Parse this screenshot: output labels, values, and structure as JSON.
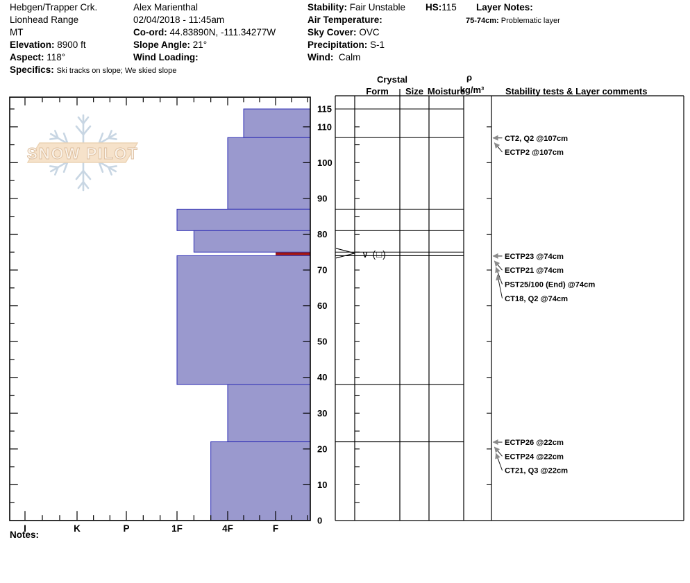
{
  "header": {
    "location": {
      "name": "Hebgen/Trapper Crk.",
      "range": "Lionhead Range",
      "state": "MT",
      "elevation_label": "Elevation:",
      "elevation_value": "8900 ft",
      "aspect_label": "Aspect:",
      "aspect_value": "118°",
      "specifics_label": "Specifics:",
      "specifics_value": "Ski tracks on slope; We skied slope"
    },
    "observation": {
      "observer": "Alex Marienthal",
      "datetime": "02/04/2018 - 11:45am",
      "coord_label": "Co-ord:",
      "coord_value": "44.83890N, -111.34277W",
      "slope_angle_label": "Slope Angle:",
      "slope_angle_value": "21°",
      "wind_loading_label": "Wind Loading:",
      "wind_loading_value": ""
    },
    "conditions": {
      "stability_label": "Stability:",
      "stability_value": "Fair Unstable",
      "air_temp_label": "Air Temperature:",
      "air_temp_value": "",
      "sky_cover_label": "Sky Cover:",
      "sky_cover_value": "OVC",
      "precip_label": "Precipitation:",
      "precip_value": "S-1",
      "wind_label": "Wind:",
      "wind_value": "Calm"
    },
    "hs_label": "HS:",
    "hs_value": "115",
    "layer_notes": {
      "label": "Layer Notes:",
      "note_depth": "75-74cm:",
      "note_text": "Problematic layer"
    }
  },
  "logo": {
    "text": "SNOW PILOT"
  },
  "table_headers": {
    "crystal": "Crystal",
    "form": "Form",
    "size": "Size",
    "moisture": "Moisture",
    "rho": "ρ",
    "rho_unit": "kg/m³",
    "stability": "Stability tests & Layer comments"
  },
  "notes_label": "Notes:",
  "chart_data": {
    "type": "bar",
    "subtype": "snow-hardness-profile",
    "title": "Snow hardness profile (depth cm vs hand hardness)",
    "depth_axis": {
      "unit": "cm",
      "min": 0,
      "max": 115,
      "tick_labels": [
        115,
        110,
        100,
        90,
        80,
        70,
        60,
        50,
        40,
        30,
        20,
        10,
        0
      ]
    },
    "hardness_axis": {
      "tick_labels": [
        "I",
        "K",
        "P",
        "1F",
        "4F",
        "F"
      ]
    },
    "total_depth_cm": 115,
    "layers": [
      {
        "top_cm": 115,
        "bottom_cm": 107,
        "hardness": "4F-"
      },
      {
        "top_cm": 107,
        "bottom_cm": 87,
        "hardness": "4F"
      },
      {
        "top_cm": 87,
        "bottom_cm": 81,
        "hardness": "1F"
      },
      {
        "top_cm": 81,
        "bottom_cm": 75,
        "hardness": "1F-"
      },
      {
        "top_cm": 75,
        "bottom_cm": 74,
        "hardness": "F",
        "problem_layer": true,
        "grain_form_symbol": "∨ (□)",
        "flagged": true
      },
      {
        "top_cm": 74,
        "bottom_cm": 38,
        "hardness": "1F"
      },
      {
        "top_cm": 38,
        "bottom_cm": 22,
        "hardness": "4F"
      },
      {
        "top_cm": 22,
        "bottom_cm": 0,
        "hardness": "4F+"
      }
    ],
    "stability_tests": [
      {
        "label": "CT2, Q2 @107cm",
        "depth_cm": 107
      },
      {
        "label": "ECTP2 @107cm",
        "depth_cm": 107
      },
      {
        "label": "ECTP23 @74cm",
        "depth_cm": 74
      },
      {
        "label": "ECTP21 @74cm",
        "depth_cm": 74
      },
      {
        "label": "PST25/100 (End) @74cm",
        "depth_cm": 74
      },
      {
        "label": "CT18, Q2 @74cm",
        "depth_cm": 74
      },
      {
        "label": "ECTP26 @22cm",
        "depth_cm": 22
      },
      {
        "label": "ECTP24 @22cm",
        "depth_cm": 22
      },
      {
        "label": "CT21, Q3 @22cm",
        "depth_cm": 22
      }
    ],
    "colors": {
      "bar_fill": "#9a99ce",
      "bar_border": "#2e2eb4",
      "problem_fill": "#a51515",
      "problem_border": "#7a0f0f",
      "annotation_arrowhead": "#8a8a8a",
      "logo_banner_fill": "#f6e2ca",
      "logo_banner_border": "#ecd3b4",
      "logo_flake": "#c6d4e2"
    }
  }
}
